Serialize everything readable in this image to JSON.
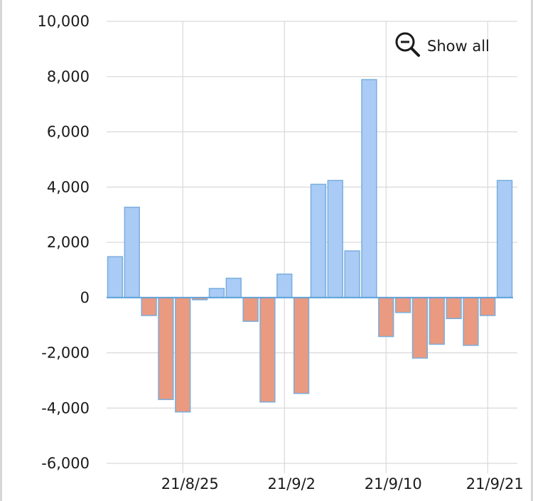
{
  "controls": {
    "show_all_label": "Show all",
    "show_all_icon": "zoom-out-icon"
  },
  "colors": {
    "positive_fill": "#a9cbf6",
    "positive_stroke": "#7aaedc",
    "negative_fill": "#e99a80",
    "negative_stroke": "#7aaedc",
    "grid": "#d9d9d9",
    "zero_line": "#5aa0d8"
  },
  "chart_data": {
    "type": "bar",
    "title": "",
    "xlabel": "",
    "ylabel": "",
    "ylim": [
      -6000,
      10000
    ],
    "yticks": [
      10000,
      8000,
      6000,
      4000,
      2000,
      0,
      -2000,
      -4000,
      -6000
    ],
    "ytick_labels": [
      "10,000",
      "8,000",
      "6,000",
      "4,000",
      "2,000",
      "0",
      "-2,000",
      "-4,000",
      "-6,000"
    ],
    "xtick_labels": [
      {
        "label": "21/8/25",
        "index": 4
      },
      {
        "label": "21/9/2",
        "index": 10
      },
      {
        "label": "21/9/10",
        "index": 16
      },
      {
        "label": "21/9/21",
        "index": 22
      }
    ],
    "grid": true,
    "values": [
      1480,
      3270,
      -650,
      -3690,
      -4140,
      -80,
      330,
      700,
      -860,
      -3780,
      850,
      -3470,
      4100,
      4240,
      1690,
      7890,
      -1410,
      -540,
      -2190,
      -1690,
      -760,
      -1730,
      -650,
      4240
    ]
  }
}
